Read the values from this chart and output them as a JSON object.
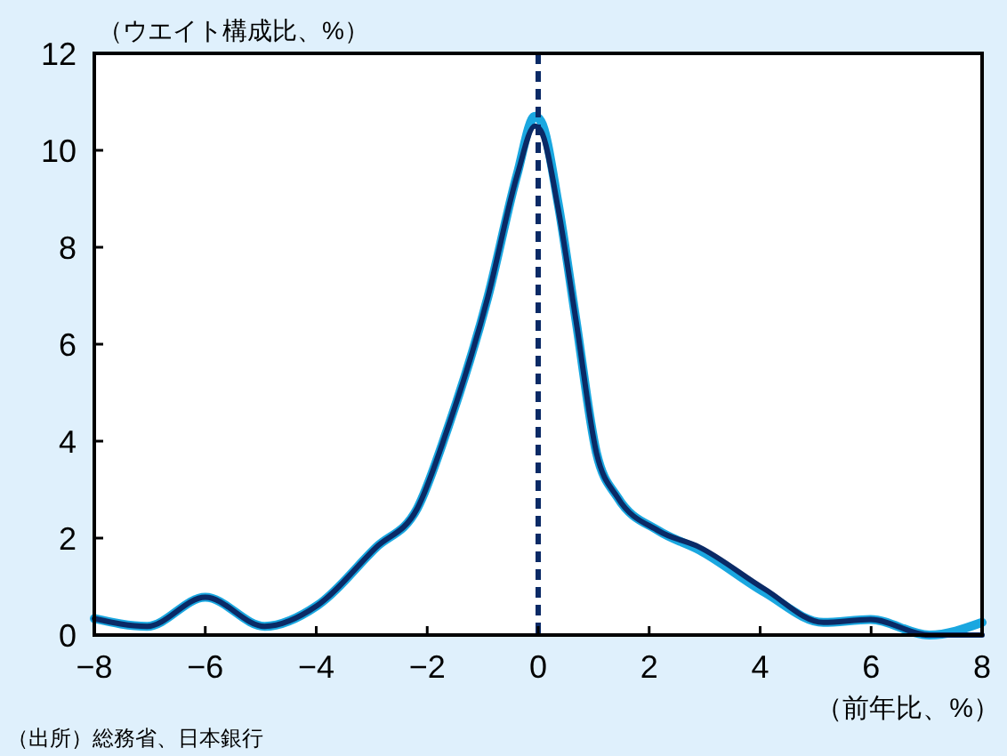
{
  "chart_data": {
    "type": "line",
    "ylabel": "（ウエイト構成比、%）",
    "xlabel": "（前年比、%）",
    "annotations": [
      "（出所）総務省、日本銀行"
    ],
    "xlim": [
      -8,
      8
    ],
    "ylim": [
      0,
      12
    ],
    "xticks": [
      -8,
      -6,
      -4,
      -2,
      0,
      2,
      4,
      6,
      8
    ],
    "yticks": [
      0,
      2,
      4,
      6,
      8,
      10,
      12
    ],
    "grid": false,
    "marker": "none",
    "line_style": "solid",
    "ref_lines": [
      {
        "axis": "x",
        "value": 0,
        "color": "#0a2a66",
        "line_style": "dashed"
      }
    ],
    "series": [
      {
        "color": "#1aa7e0",
        "x": [
          -8,
          -7.05,
          -6,
          -4.93,
          -3.98,
          -2.92,
          -2.18,
          -1.65,
          -0.91,
          -0.38,
          -0.06,
          0.05,
          0.36,
          0.68,
          1.05,
          1.43,
          2.17,
          2.91,
          4.08,
          5.14,
          5.99,
          7.05,
          8
        ],
        "values": [
          0.34,
          0.18,
          0.78,
          0.18,
          0.61,
          1.81,
          2.61,
          4.2,
          6.96,
          9.5,
          10.7,
          10.6,
          8.9,
          6.5,
          3.76,
          2.84,
          2.15,
          1.75,
          0.88,
          0.26,
          0.32,
          0,
          0.26
        ]
      },
      {
        "color": "#0a2a66",
        "x": [
          -8,
          -7.05,
          -6,
          -4.93,
          -3.98,
          -2.92,
          -2.18,
          -1.65,
          -0.91,
          -0.38,
          -0.06,
          0.05,
          0.36,
          0.68,
          1.05,
          1.43,
          2.17,
          2.91,
          4.08,
          5.14,
          5.99,
          7.05,
          8
        ],
        "values": [
          0.34,
          0.18,
          0.78,
          0.18,
          0.61,
          1.81,
          2.61,
          4.2,
          6.96,
          9.48,
          10.5,
          10.4,
          8.8,
          6.5,
          3.76,
          2.84,
          2.15,
          1.81,
          0.95,
          0.26,
          0.32,
          0,
          0
        ]
      }
    ]
  }
}
